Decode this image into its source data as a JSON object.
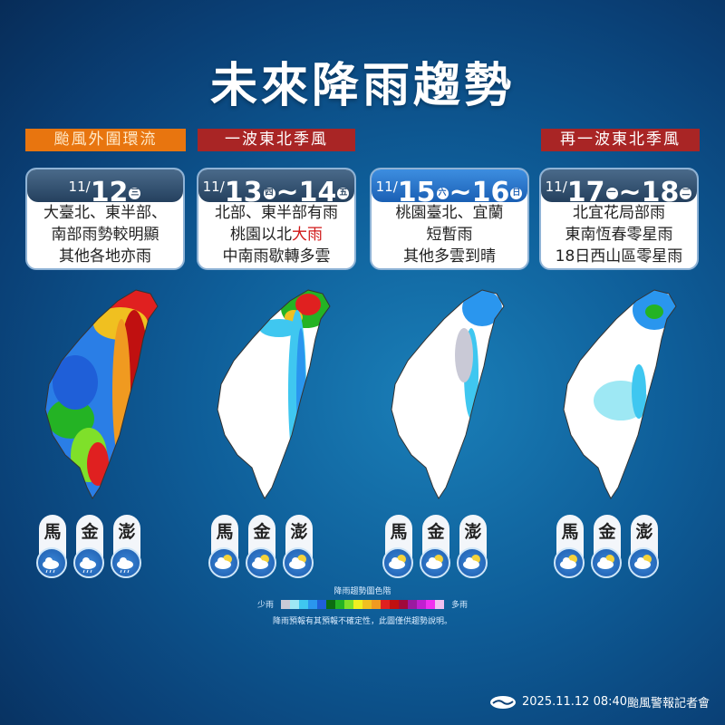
{
  "title": "未來降雨趨勢",
  "tags": [
    {
      "label": "颱風外圍環流",
      "color": "#e8750f"
    },
    {
      "label": "一波東北季風",
      "color": "#a92525"
    },
    {
      "label": "再一波東北季風",
      "color": "#a92525"
    }
  ],
  "periods": [
    {
      "month": "11/",
      "day1": "12",
      "wd1": "三",
      "sep": "",
      "day2": "",
      "wd2": "",
      "lines": [
        "大臺北、東半部、",
        "南部雨勢較明顯",
        "其他各地亦雨"
      ],
      "weather_icon": "cloud-rain-icon"
    },
    {
      "month": "11/",
      "day1": "13",
      "wd1": "四",
      "sep": "~",
      "day2": "14",
      "wd2": "五",
      "lines": [
        "北部、東半部有雨",
        "桃園以北",
        "中南雨歇轉多雲"
      ],
      "highlight": "大雨",
      "weather_icon": "partly-sunny-icon"
    },
    {
      "month": "11/",
      "day1": "15",
      "wd1": "六",
      "sep": "~",
      "day2": "16",
      "wd2": "日",
      "lines": [
        "桃園臺北、宜蘭",
        "短暫雨",
        "其他多雲到晴"
      ],
      "weather_icon": "partly-sunny-icon"
    },
    {
      "month": "11/",
      "day1": "17",
      "wd1": "一",
      "sep": "~",
      "day2": "18",
      "wd2": "二",
      "lines": [
        "北宜花局部雨",
        "東南恆春零星雨",
        "18日西山區零星雨"
      ],
      "weather_icon": "partly-sunny-icon"
    }
  ],
  "islands": [
    "馬",
    "金",
    "澎"
  ],
  "legend": {
    "title": "降雨趨勢圖色階",
    "low": "少雨",
    "high": "多雨",
    "colors": [
      "#c9c9d6",
      "#9ee8f4",
      "#3fc7f0",
      "#2a96ee",
      "#1f5fd8",
      "#0c6d12",
      "#24b324",
      "#7fe02a",
      "#f0f020",
      "#f0c020",
      "#f09a20",
      "#e02020",
      "#c01010",
      "#a00a3a",
      "#9a1aa0",
      "#c020d0",
      "#f030f0",
      "#f0c0f0"
    ],
    "note": "降雨預報有其預報不確定性，此圖僅供趨勢說明。"
  },
  "footer": {
    "datetime": "2025.11.12  08:40",
    "event": "颱風警報記者會"
  }
}
